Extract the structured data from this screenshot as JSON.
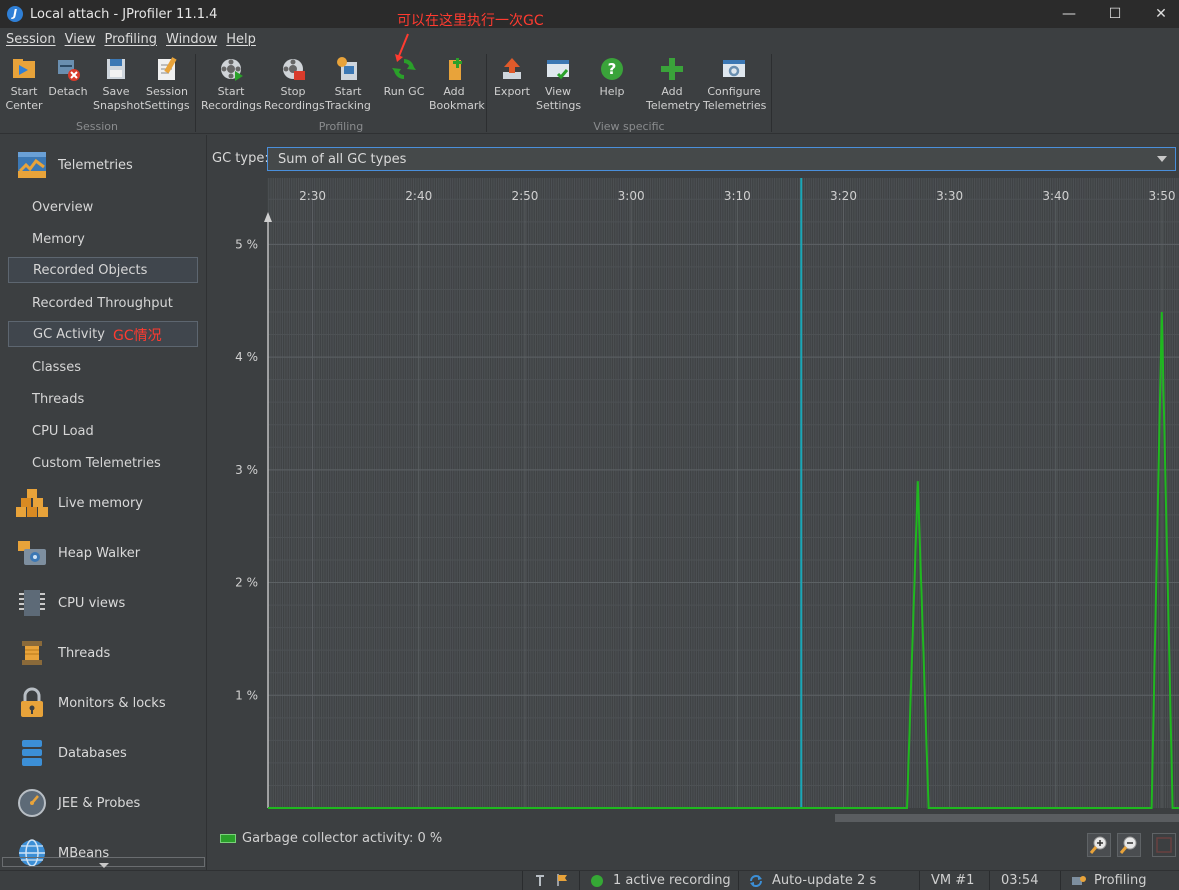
{
  "window": {
    "title": "Local attach - JProfiler 11.1.4",
    "minimize": "—",
    "maximize": "☐",
    "close": "✕"
  },
  "menu": [
    "Session",
    "View",
    "Profiling",
    "Window",
    "Help"
  ],
  "toolbar": {
    "groups": [
      {
        "label": "Session",
        "buttons": [
          {
            "line1": "Start",
            "line2": "Center",
            "icon": "start-center-icon"
          },
          {
            "line1": "Detach",
            "line2": "",
            "icon": "detach-icon"
          },
          {
            "line1": "Save",
            "line2": "Snapshot",
            "icon": "save-snapshot-icon"
          },
          {
            "line1": "Session",
            "line2": "Settings",
            "icon": "session-settings-icon"
          }
        ]
      },
      {
        "label": "Profiling",
        "buttons": [
          {
            "line1": "Start",
            "line2": "Recordings",
            "icon": "start-recordings-icon"
          },
          {
            "line1": "Stop",
            "line2": "Recordings",
            "icon": "stop-recordings-icon"
          },
          {
            "line1": "Start",
            "line2": "Tracking",
            "icon": "start-tracking-icon"
          },
          {
            "line1": "Run GC",
            "line2": "",
            "icon": "run-gc-icon"
          },
          {
            "line1": "Add",
            "line2": "Bookmark",
            "icon": "add-bookmark-icon"
          }
        ]
      },
      {
        "label": "View specific",
        "buttons": [
          {
            "line1": "Export",
            "line2": "",
            "icon": "export-icon"
          },
          {
            "line1": "View",
            "line2": "Settings",
            "icon": "view-settings-icon"
          },
          {
            "line1": "Help",
            "line2": "",
            "icon": "help-icon"
          },
          {
            "line1": "Add",
            "line2": "Telemetry",
            "icon": "add-telemetry-icon"
          },
          {
            "line1": "Configure",
            "line2": "Telemetries",
            "icon": "configure-telemetries-icon"
          }
        ]
      }
    ]
  },
  "annotations": {
    "run_gc_note": "可以在这里执行一次GC",
    "gc_activity_note": "GC情况"
  },
  "sidebar": {
    "telemetries": "Telemetries",
    "sub_items": [
      {
        "label": "Overview",
        "selected": false
      },
      {
        "label": "Memory",
        "selected": false
      },
      {
        "label": "Recorded Objects",
        "selected": true
      },
      {
        "label": "Recorded Throughput",
        "selected": false
      },
      {
        "label": "GC Activity",
        "selected": true
      },
      {
        "label": "Classes",
        "selected": false
      },
      {
        "label": "Threads",
        "selected": false
      },
      {
        "label": "CPU Load",
        "selected": false
      },
      {
        "label": "Custom Telemetries",
        "selected": false
      }
    ],
    "sections": [
      {
        "label": "Live memory",
        "icon": "live-memory-icon"
      },
      {
        "label": "Heap Walker",
        "icon": "heap-walker-icon"
      },
      {
        "label": "CPU views",
        "icon": "cpu-views-icon"
      },
      {
        "label": "Threads",
        "icon": "threads-icon"
      },
      {
        "label": "Monitors & locks",
        "icon": "monitors-locks-icon"
      },
      {
        "label": "Databases",
        "icon": "databases-icon"
      },
      {
        "label": "JEE & Probes",
        "icon": "jee-probes-icon"
      },
      {
        "label": "MBeans",
        "icon": "mbeans-icon"
      }
    ]
  },
  "gc_type": {
    "label": "GC type:",
    "value": "Sum of all GC types"
  },
  "legend": {
    "label": "Garbage collector activity: 0 %",
    "color": "#2aa02a"
  },
  "status": {
    "recording": "1 active recording",
    "auto_update": "Auto-update 2 s",
    "vm": "VM #1",
    "time": "03:54",
    "mode": "Profiling"
  },
  "chart_data": {
    "type": "line",
    "title": "",
    "xlabel": "",
    "ylabel": "",
    "x_ticks": [
      "2:30",
      "2:40",
      "2:50",
      "3:00",
      "3:10",
      "3:20",
      "3:30",
      "3:40",
      "3:50"
    ],
    "y_ticks": [
      "1 %",
      "2 %",
      "3 %",
      "4 %",
      "5 %"
    ],
    "ylim": [
      0,
      5.5
    ],
    "xlim_minutes": [
      2.43,
      3.86
    ],
    "marker_minute": 3.267,
    "series": [
      {
        "color": "#1fb81f",
        "points": [
          [
            2.43,
            0
          ],
          [
            3.433,
            0
          ],
          [
            3.45,
            2.9
          ],
          [
            3.467,
            0
          ],
          [
            3.817,
            0
          ],
          [
            3.833,
            4.4
          ],
          [
            3.85,
            0
          ],
          [
            3.86,
            0
          ]
        ]
      }
    ]
  }
}
